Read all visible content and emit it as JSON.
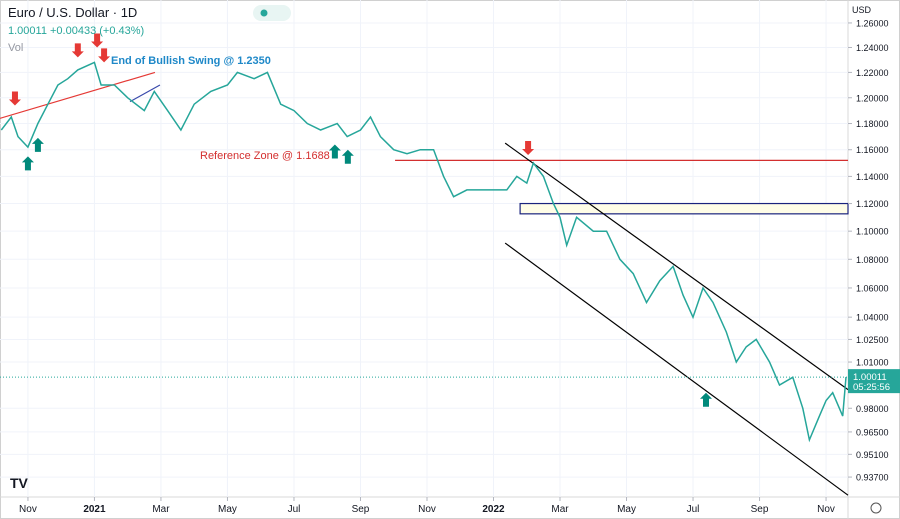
{
  "chart_data": {
    "type": "line",
    "title": "Euro / U.S. Dollar · 1D",
    "quote": "1.00011 +0.00433 (+0.43%)",
    "volume_label": "Vol",
    "currency": "USD",
    "log_scale": true,
    "ylim": [
      0.9249,
      1.279
    ],
    "yticks": [
      {
        "value": 1.26,
        "label": "1.26000"
      },
      {
        "value": 1.24,
        "label": "1.24000"
      },
      {
        "value": 1.22,
        "label": "1.22000"
      },
      {
        "value": 1.2,
        "label": "1.20000"
      },
      {
        "value": 1.18,
        "label": "1.18000"
      },
      {
        "value": 1.16,
        "label": "1.16000"
      },
      {
        "value": 1.14,
        "label": "1.14000"
      },
      {
        "value": 1.12,
        "label": "1.12000"
      },
      {
        "value": 1.1,
        "label": "1.10000"
      },
      {
        "value": 1.08,
        "label": "1.08000"
      },
      {
        "value": 1.06,
        "label": "1.06000"
      },
      {
        "value": 1.04,
        "label": "1.04000"
      },
      {
        "value": 1.025,
        "label": "1.02500"
      },
      {
        "value": 1.01,
        "label": "1.01000"
      },
      {
        "value": 0.98,
        "label": "0.98000"
      },
      {
        "value": 0.965,
        "label": "0.96500"
      },
      {
        "value": 0.951,
        "label": "0.95100"
      },
      {
        "value": 0.937,
        "label": "0.93700"
      }
    ],
    "xlim": [
      -0.84,
      24.66
    ],
    "xticks": [
      {
        "value": 0,
        "label": "Nov"
      },
      {
        "value": 2,
        "label": "2021"
      },
      {
        "value": 4,
        "label": "Mar"
      },
      {
        "value": 6,
        "label": "May"
      },
      {
        "value": 8,
        "label": "Jul"
      },
      {
        "value": 10,
        "label": "Sep"
      },
      {
        "value": 12,
        "label": "Nov"
      },
      {
        "value": 14,
        "label": "2022"
      },
      {
        "value": 16,
        "label": "Mar"
      },
      {
        "value": 18,
        "label": "May"
      },
      {
        "value": 20,
        "label": "Jul"
      },
      {
        "value": 22,
        "label": "Sep"
      },
      {
        "value": 24,
        "label": "Nov"
      }
    ],
    "series": [
      {
        "color": "#26a69a",
        "x": [
          -0.8,
          -0.5,
          -0.3,
          0,
          0.3,
          0.6,
          0.9,
          1.2,
          1.5,
          2,
          2.2,
          2.6,
          3,
          3.5,
          3.8,
          4.2,
          4.6,
          5,
          5.5,
          6,
          6.3,
          6.8,
          7.2,
          7.6,
          8,
          8.4,
          8.8,
          9.3,
          9.6,
          10,
          10.3,
          10.6,
          11,
          11.4,
          11.8,
          12.2,
          12.5,
          12.8,
          13.2,
          13.6,
          14,
          14.4,
          14.7,
          15,
          15.2,
          15.5,
          15.8,
          16,
          16.2,
          16.5,
          17,
          17.4,
          17.8,
          18.2,
          18.6,
          19,
          19.4,
          19.7,
          20,
          20.3,
          20.6,
          21,
          21.3,
          21.6,
          21.9,
          22.3,
          22.6,
          23,
          23.3,
          23.5,
          23.8,
          24,
          24.2,
          24.5,
          24.6
        ],
        "values": [
          1.175,
          1.185,
          1.17,
          1.162,
          1.18,
          1.195,
          1.21,
          1.215,
          1.222,
          1.228,
          1.21,
          1.21,
          1.2,
          1.19,
          1.205,
          1.19,
          1.175,
          1.195,
          1.205,
          1.21,
          1.22,
          1.215,
          1.22,
          1.195,
          1.19,
          1.18,
          1.175,
          1.18,
          1.17,
          1.175,
          1.185,
          1.17,
          1.16,
          1.157,
          1.16,
          1.16,
          1.14,
          1.125,
          1.13,
          1.13,
          1.13,
          1.13,
          1.14,
          1.135,
          1.15,
          1.14,
          1.12,
          1.11,
          1.09,
          1.11,
          1.1,
          1.1,
          1.08,
          1.07,
          1.05,
          1.065,
          1.075,
          1.055,
          1.04,
          1.06,
          1.05,
          1.03,
          1.01,
          1.02,
          1.025,
          1.01,
          0.995,
          1.0,
          0.98,
          0.96,
          0.975,
          0.985,
          0.99,
          0.975,
          1.00011
        ]
      }
    ],
    "price_tag": {
      "value": 1.00011,
      "label": "1.00011",
      "countdown": "05:25:56",
      "color": "#26a69a"
    },
    "annotations": [
      {
        "text": "End of Bullish Swing @ 1.2350",
        "color": "#1e88c8"
      },
      {
        "text": "Reference Zone @ 1.1688",
        "color": "#d32f2f"
      }
    ],
    "overlays": [
      {
        "color": "#e53935",
        "x": [
          -0.84,
          3.82
        ],
        "y": [
          1.184,
          1.22
        ]
      },
      {
        "color": "#3949ab",
        "x": [
          3.07,
          3.97
        ],
        "y": [
          1.197,
          1.21
        ]
      },
      {
        "color": "#d32f2f",
        "x": [
          11.04,
          24.66
        ],
        "y": [
          1.152,
          1.152
        ]
      },
      {
        "color": "#000000",
        "x": [
          14.35,
          24.66
        ],
        "y": [
          1.165,
          0.992
        ]
      },
      {
        "color": "#000000",
        "x": [
          14.35,
          24.66
        ],
        "y": [
          1.0915,
          0.926
        ]
      }
    ],
    "zone": {
      "color": "#1a237e",
      "x": [
        14.8,
        24.66
      ],
      "y": [
        1.12,
        1.1125
      ]
    },
    "markers": [
      {
        "dir": "down",
        "color": "#e53935",
        "x": -0.39,
        "y": 1.194
      },
      {
        "dir": "down",
        "color": "#e53935",
        "x": 1.5,
        "y": 1.232
      },
      {
        "dir": "down",
        "color": "#e53935",
        "x": 2.08,
        "y": 1.24
      },
      {
        "dir": "down",
        "color": "#e53935",
        "x": 2.29,
        "y": 1.228
      },
      {
        "dir": "down",
        "color": "#e53935",
        "x": 15.04,
        "y": 1.156
      },
      {
        "dir": "up",
        "color": "#00897b",
        "x": 0,
        "y": 1.155
      },
      {
        "dir": "up",
        "color": "#00897b",
        "x": 0.3,
        "y": 1.169
      },
      {
        "dir": "up",
        "color": "#00897b",
        "x": 9.23,
        "y": 1.164
      },
      {
        "dir": "up",
        "color": "#00897b",
        "x": 9.62,
        "y": 1.16
      },
      {
        "dir": "up",
        "color": "#00897b",
        "x": 20.39,
        "y": 0.99
      }
    ]
  }
}
